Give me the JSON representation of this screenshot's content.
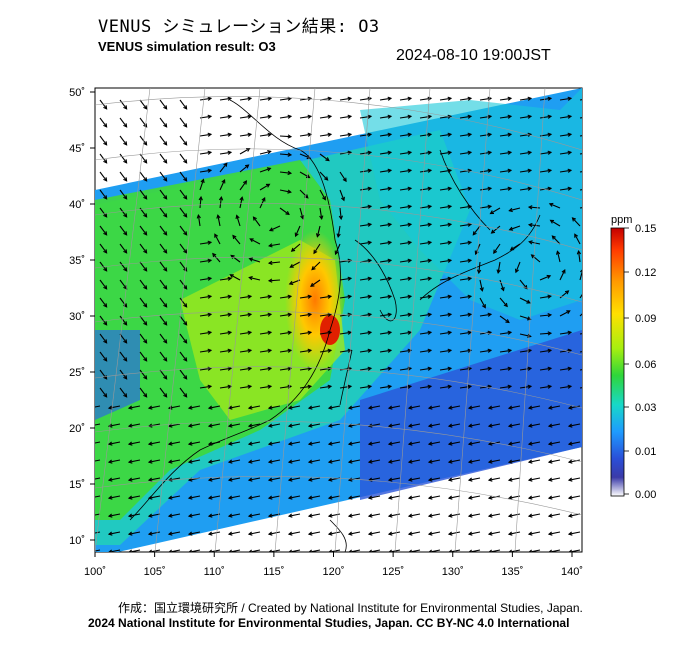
{
  "header": {
    "title_jp": "VENUS シミュレーション結果: O3",
    "title_en": "VENUS simulation result: O3",
    "timestamp": "2024-08-10 19:00JST"
  },
  "map": {
    "lon_ticks": [
      "100˚",
      "105˚",
      "110˚",
      "115˚",
      "120˚",
      "125˚",
      "130˚",
      "135˚",
      "140˚"
    ],
    "lat_ticks": [
      "50˚",
      "45˚",
      "40˚",
      "35˚",
      "30˚",
      "25˚",
      "20˚",
      "15˚",
      "10˚"
    ],
    "lon_values": [
      100,
      105,
      110,
      115,
      120,
      125,
      130,
      135,
      140
    ],
    "lat_values": [
      50,
      45,
      40,
      35,
      30,
      25,
      20,
      15,
      10
    ]
  },
  "colorbar": {
    "unit": "ppm",
    "labels": [
      "0.15",
      "0.12",
      "0.09",
      "0.06",
      "0.03",
      "0.01",
      "0.00"
    ],
    "colors": [
      "#cc0000",
      "#ff6a00",
      "#ffd200",
      "#b4f000",
      "#33d833",
      "#20d8c8",
      "#1e9bff",
      "#2a4fd8",
      "#ffffff"
    ]
  },
  "footer": {
    "credit": "作成：国立環境研究所 / Created by National Institute for Environmental Studies, Japan.",
    "copyright": "2024 National Institute for Environmental Studies, Japan. CC BY-NC 4.0 International"
  }
}
